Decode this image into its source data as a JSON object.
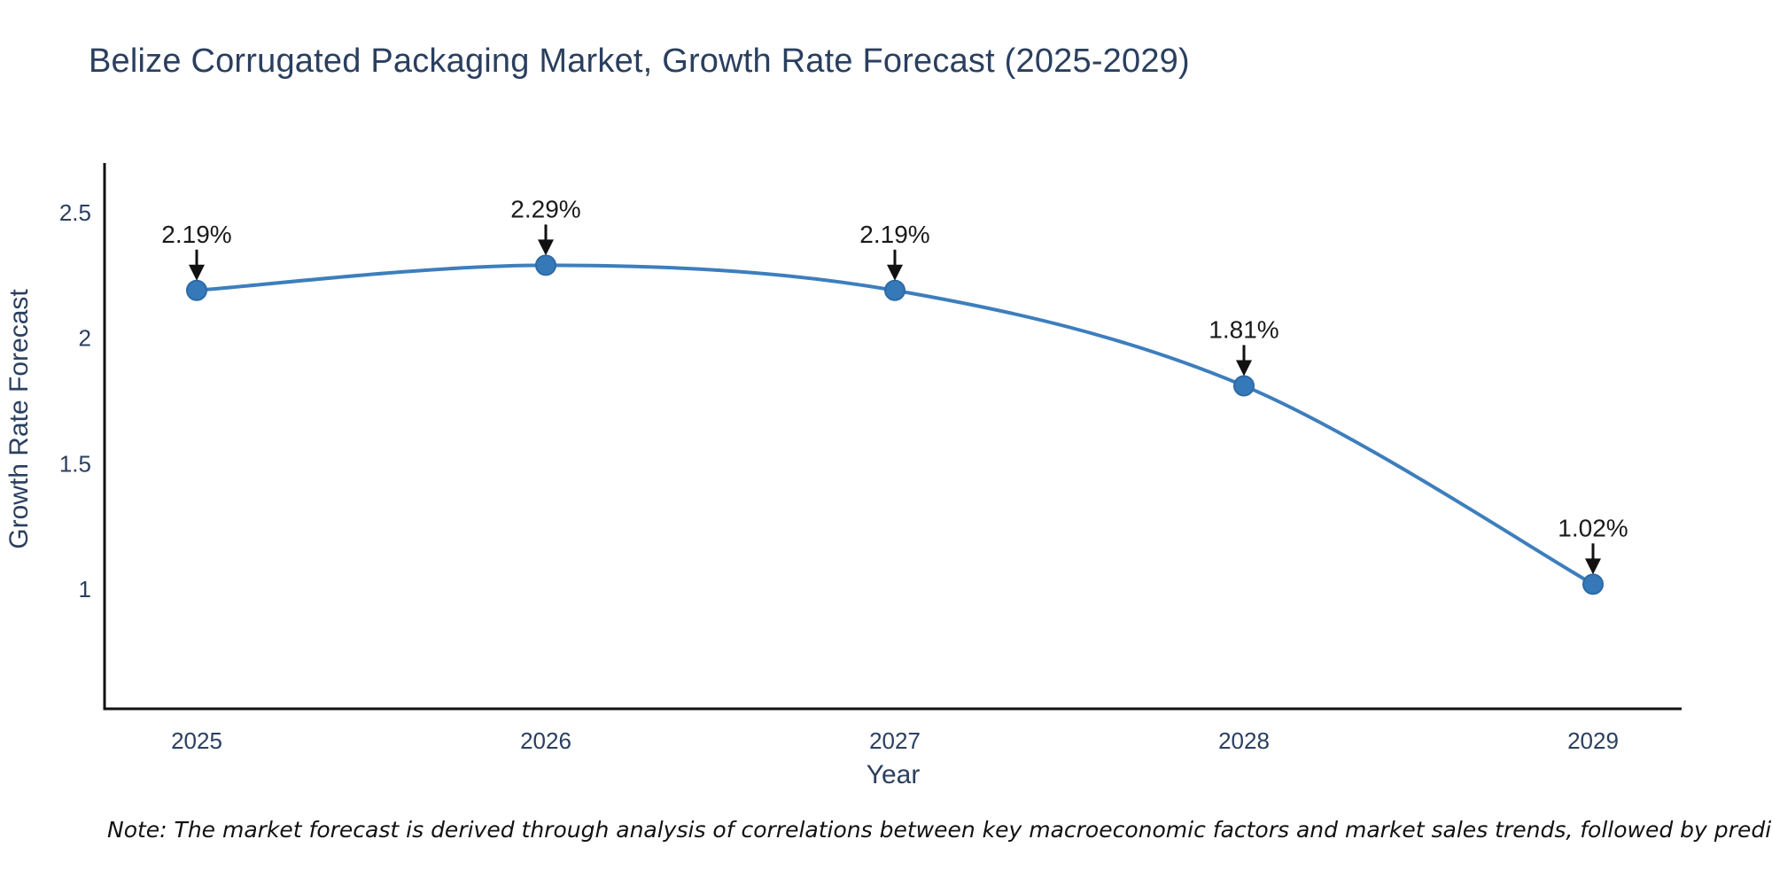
{
  "title": {
    "text": "Belize Corrugated Packaging Market, Growth Rate Forecast (2025-2029)",
    "color": "#2a3f5f"
  },
  "note": {
    "text": "Note: The market forecast is derived through analysis of correlations between key macroeconomic factors and market sales trends, followed by predictive modeling to project future sales"
  },
  "chart_data": {
    "type": "line",
    "title": "Belize Corrugated Packaging Market, Growth Rate Forecast (2025-2029)",
    "xlabel": "Year",
    "ylabel": "Growth Rate Forecast",
    "categories": [
      "2025",
      "2026",
      "2027",
      "2028",
      "2029"
    ],
    "series": [
      {
        "name": "Growth Rate Forecast",
        "values": [
          2.19,
          2.29,
          2.19,
          1.81,
          1.02
        ]
      }
    ],
    "point_labels": [
      "2.19%",
      "2.29%",
      "2.19%",
      "1.81%",
      "1.02%"
    ],
    "yticks": [
      1,
      1.5,
      2,
      2.5
    ],
    "ylim": [
      0.52,
      2.7
    ],
    "grid": false,
    "legend": false,
    "line_shape": "spline",
    "colors": {
      "line": "#3d7ebd",
      "marker_fill": "#3579b8",
      "marker_edge": "#2d6aa6",
      "axis": "#111111",
      "tick_label": "#2a3f5f",
      "annotation_text": "#1a1a1a",
      "annotation_arrow": "#111111"
    }
  }
}
